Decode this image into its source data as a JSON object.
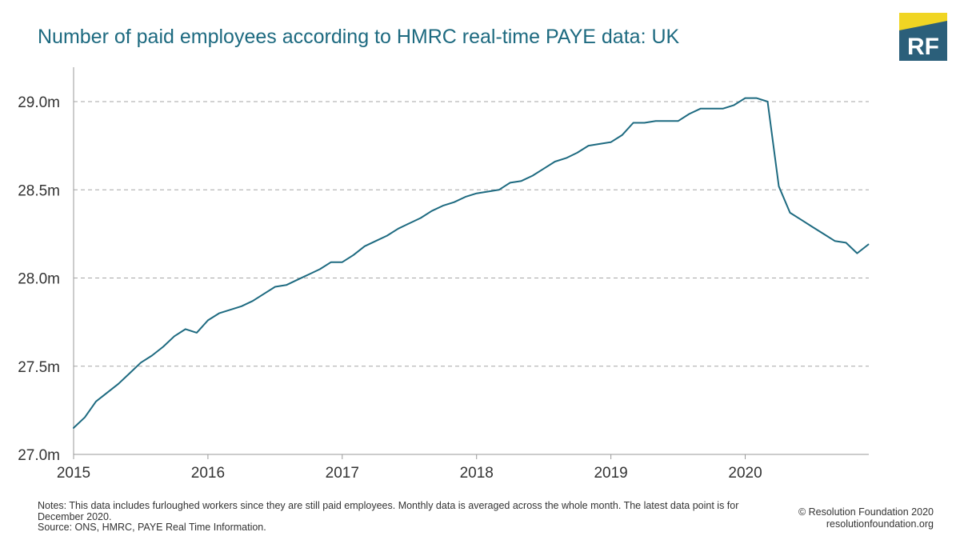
{
  "title": "Number of paid employees according to HMRC real-time PAYE data: UK",
  "logo": {
    "text": "RF",
    "colors": {
      "navy": "#2b5f7a",
      "yellow": "#f0d523"
    }
  },
  "colors": {
    "line": "#1d6a80",
    "title": "#1d6a80",
    "grid": "#a6a6a6",
    "axis": "#999999"
  },
  "chart_data": {
    "type": "line",
    "title": "Number of paid employees according to HMRC real-time PAYE data: UK",
    "xlabel": "",
    "ylabel": "",
    "x_ticks": [
      "2015",
      "2016",
      "2017",
      "2018",
      "2019",
      "2020"
    ],
    "y_ticks": [
      "27.0m",
      "27.5m",
      "28.0m",
      "28.5m",
      "29.0m"
    ],
    "ylim": [
      27.0,
      29.0
    ],
    "grid": "horizontal-dashed",
    "x_start": "2015-01",
    "x_end": "2020-12",
    "series": [
      {
        "values": [
          27.15,
          27.21,
          27.3,
          27.35,
          27.4,
          27.46,
          27.52,
          27.56,
          27.61,
          27.67,
          27.71,
          27.69,
          27.76,
          27.8,
          27.82,
          27.84,
          27.87,
          27.91,
          27.95,
          27.96,
          27.99,
          28.02,
          28.05,
          28.09,
          28.09,
          28.13,
          28.18,
          28.21,
          28.24,
          28.28,
          28.31,
          28.34,
          28.38,
          28.41,
          28.43,
          28.46,
          28.48,
          28.49,
          28.5,
          28.54,
          28.55,
          28.58,
          28.62,
          28.66,
          28.68,
          28.71,
          28.75,
          28.76,
          28.77,
          28.81,
          28.88,
          28.88,
          28.89,
          28.89,
          28.89,
          28.93,
          28.96,
          28.96,
          28.96,
          28.98,
          29.02,
          29.02,
          29.0,
          28.52,
          28.37,
          28.33,
          28.29,
          28.25,
          28.21,
          28.2,
          28.14,
          28.19
        ]
      }
    ]
  },
  "notes": {
    "line1": "Notes: This data includes furloughed workers since they are still paid employees. Monthly data is averaged across the whole month. The latest data point is for December 2020.",
    "line2": "Source: ONS, HMRC, PAYE Real Time Information."
  },
  "credit": {
    "line1": "© Resolution Foundation 2020",
    "line2": "resolutionfoundation.org"
  }
}
